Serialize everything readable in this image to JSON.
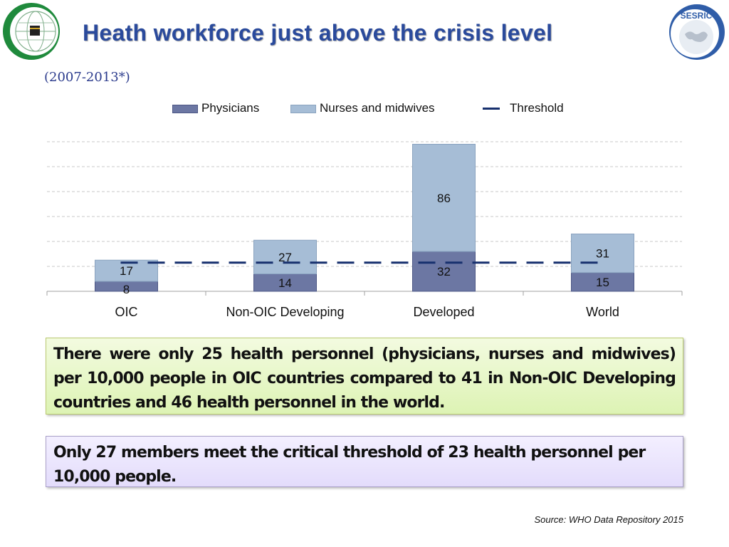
{
  "header": {
    "title": "Heath workforce just above the crisis level",
    "subtitle": "(2007-2013*)"
  },
  "logos": {
    "left": "OIC emblem",
    "right": "SESRIC",
    "right_text": "SESRIC"
  },
  "chart_data": {
    "type": "bar",
    "stacked": true,
    "categories": [
      "OIC",
      "Non-OIC Developing",
      "Developed",
      "World"
    ],
    "series": [
      {
        "name": "Physicians",
        "values": [
          8,
          14,
          32,
          15
        ],
        "color": "#6c77a3"
      },
      {
        "name": "Nurses and midwives",
        "values": [
          17,
          27,
          86,
          31
        ],
        "color": "#a6bdd6"
      }
    ],
    "threshold": {
      "name": "Threshold",
      "value": 23,
      "color": "#17306e"
    },
    "ylim": [
      0,
      120
    ],
    "grid": true,
    "legend": "top"
  },
  "callouts": {
    "main": "There were only 25 health personnel (physicians, nurses and midwives) per 10,000 people in OIC countries compared to 41 in Non-OIC Developing countries and 46 health personnel in the world.",
    "threshold": "Only 27 members meet the critical threshold of 23 health personnel per 10,000 people."
  },
  "footer": {
    "source": "Source: WHO Data Repository 2015"
  }
}
